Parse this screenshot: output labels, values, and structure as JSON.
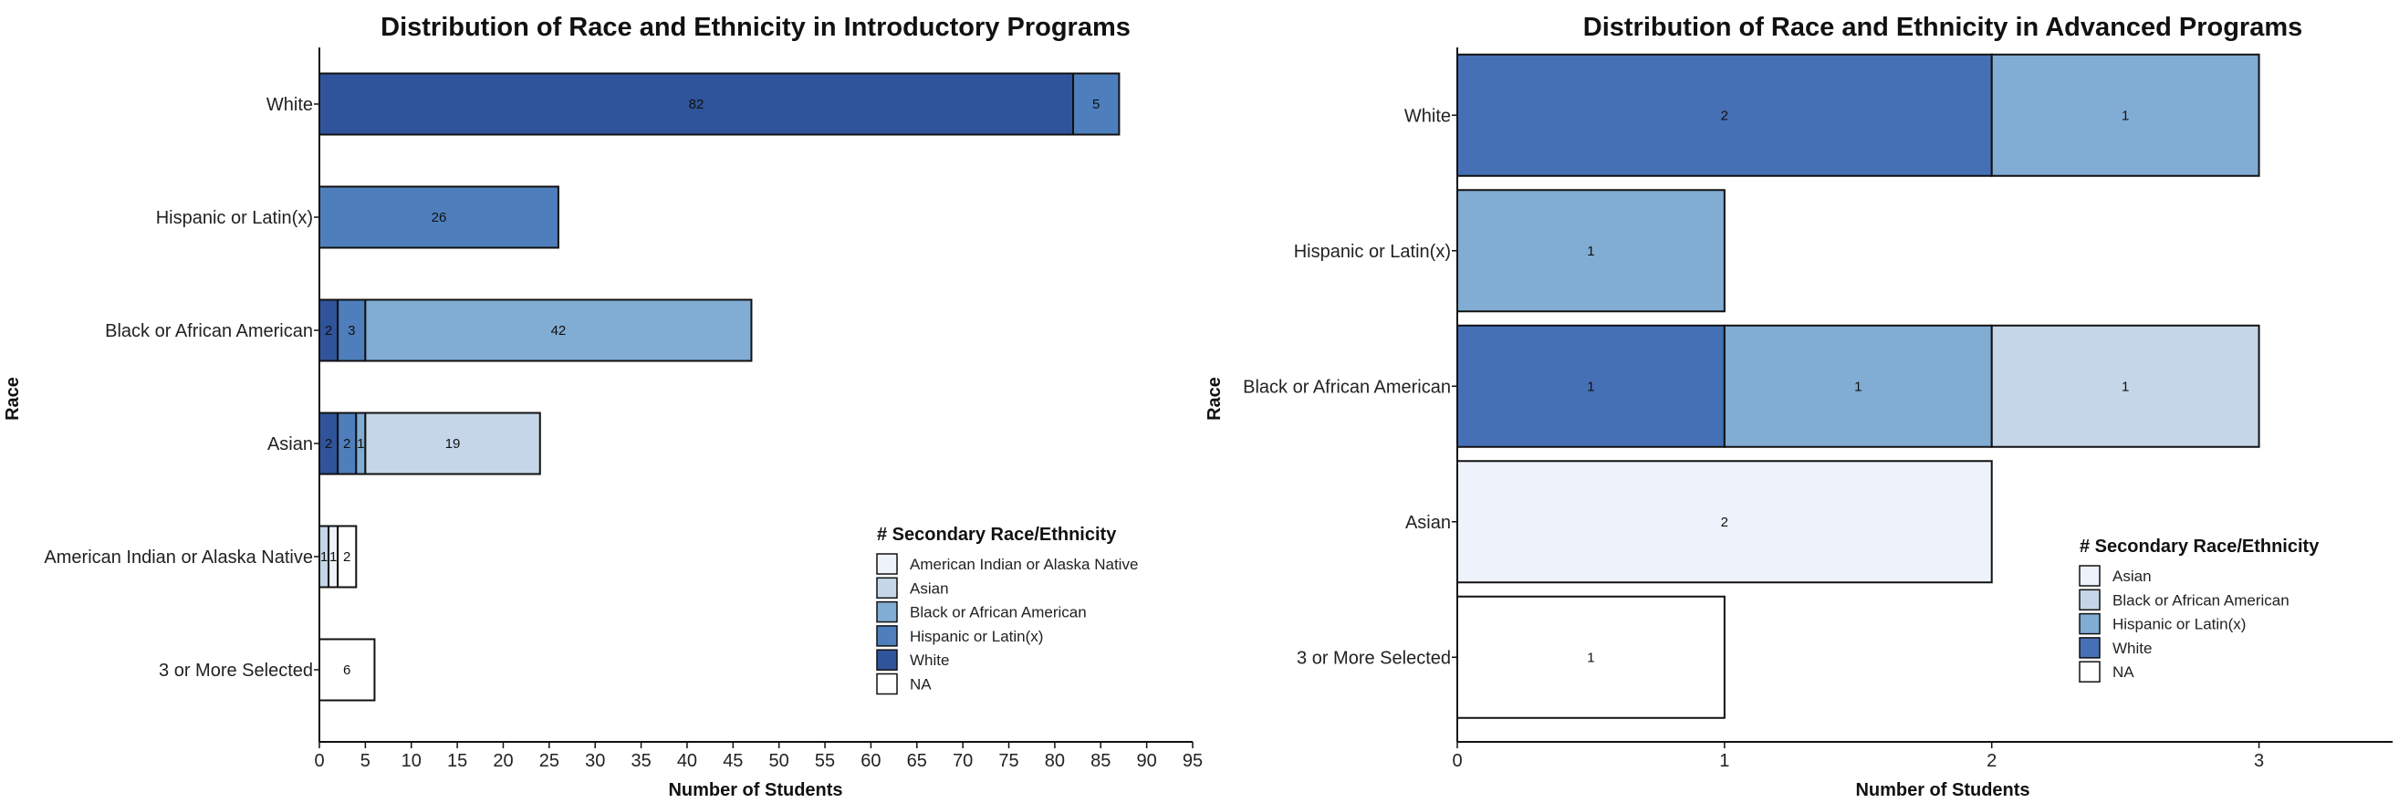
{
  "chart_data": [
    {
      "type": "bar",
      "orientation": "horizontal",
      "stacked": true,
      "title": "Distribution of Race and Ethnicity in Introductory Programs",
      "xlabel": "Number of Students",
      "ylabel": "Race",
      "xlim": [
        0,
        95
      ],
      "xticks": [
        0,
        5,
        10,
        15,
        20,
        25,
        30,
        35,
        40,
        45,
        50,
        55,
        60,
        65,
        70,
        75,
        80,
        85,
        90,
        95
      ],
      "categories": [
        "White",
        "Hispanic or Latin(x)",
        "Black or African American",
        "Asian",
        "American Indian or Alaska Native",
        "3 or More Selected"
      ],
      "legend_title": "# Secondary Race/Ethnicity",
      "legend_placement": "bottom-right",
      "series": [
        {
          "name": "White",
          "color": "#30549B",
          "values": [
            82,
            0,
            2,
            2,
            0,
            0
          ]
        },
        {
          "name": "Hispanic or Latin(x)",
          "color": "#4E7FBC",
          "values": [
            5,
            26,
            3,
            2,
            0,
            0
          ]
        },
        {
          "name": "Black or African American",
          "color": "#81ACD3",
          "values": [
            0,
            0,
            42,
            1,
            0,
            0
          ]
        },
        {
          "name": "Asian",
          "color": "#C4D6E7",
          "values": [
            0,
            0,
            0,
            19,
            1,
            0
          ]
        },
        {
          "name": "American Indian or Alaska Native",
          "color": "#EEF2FB",
          "values": [
            0,
            0,
            0,
            0,
            1,
            0
          ]
        },
        {
          "name": "NA",
          "color": "#FFFFFF",
          "values": [
            0,
            0,
            0,
            0,
            2,
            6
          ]
        }
      ],
      "stack_order": [
        "White",
        "Hispanic or Latin(x)",
        "Black or African American",
        "Asian",
        "American Indian or Alaska Native",
        "NA"
      ],
      "legend_order": [
        "American Indian or Alaska Native",
        "Asian",
        "Black or African American",
        "Hispanic or Latin(x)",
        "White",
        "NA"
      ]
    },
    {
      "type": "bar",
      "orientation": "horizontal",
      "stacked": true,
      "title": "Distribution of Race and Ethnicity in Advanced Programs",
      "xlabel": "Number of Students",
      "ylabel": "Race",
      "xlim": [
        0,
        3.5
      ],
      "xticks": [
        0,
        1,
        2,
        3
      ],
      "categories": [
        "White",
        "Hispanic or Latin(x)",
        "Black or African American",
        "Asian",
        "3 or More Selected"
      ],
      "legend_title": "# Secondary Race/Ethnicity",
      "legend_placement": "bottom-right",
      "series": [
        {
          "name": "White",
          "color": "#4570B5",
          "values": [
            2,
            0,
            1,
            0,
            0
          ]
        },
        {
          "name": "Hispanic or Latin(x)",
          "color": "#81ACD3",
          "values": [
            1,
            1,
            1,
            0,
            0
          ]
        },
        {
          "name": "Black or African American",
          "color": "#C4D6E7",
          "values": [
            0,
            0,
            1,
            0,
            0
          ]
        },
        {
          "name": "Asian",
          "color": "#EEF2FB",
          "values": [
            0,
            0,
            0,
            2,
            0
          ]
        },
        {
          "name": "NA",
          "color": "#FFFFFF",
          "values": [
            0,
            0,
            0,
            0,
            1
          ]
        }
      ],
      "stack_order": [
        "White",
        "Hispanic or Latin(x)",
        "Black or African American",
        "Asian",
        "NA"
      ],
      "legend_order": [
        "Asian",
        "Black or African American",
        "Hispanic or Latin(x)",
        "White",
        "NA"
      ]
    }
  ]
}
